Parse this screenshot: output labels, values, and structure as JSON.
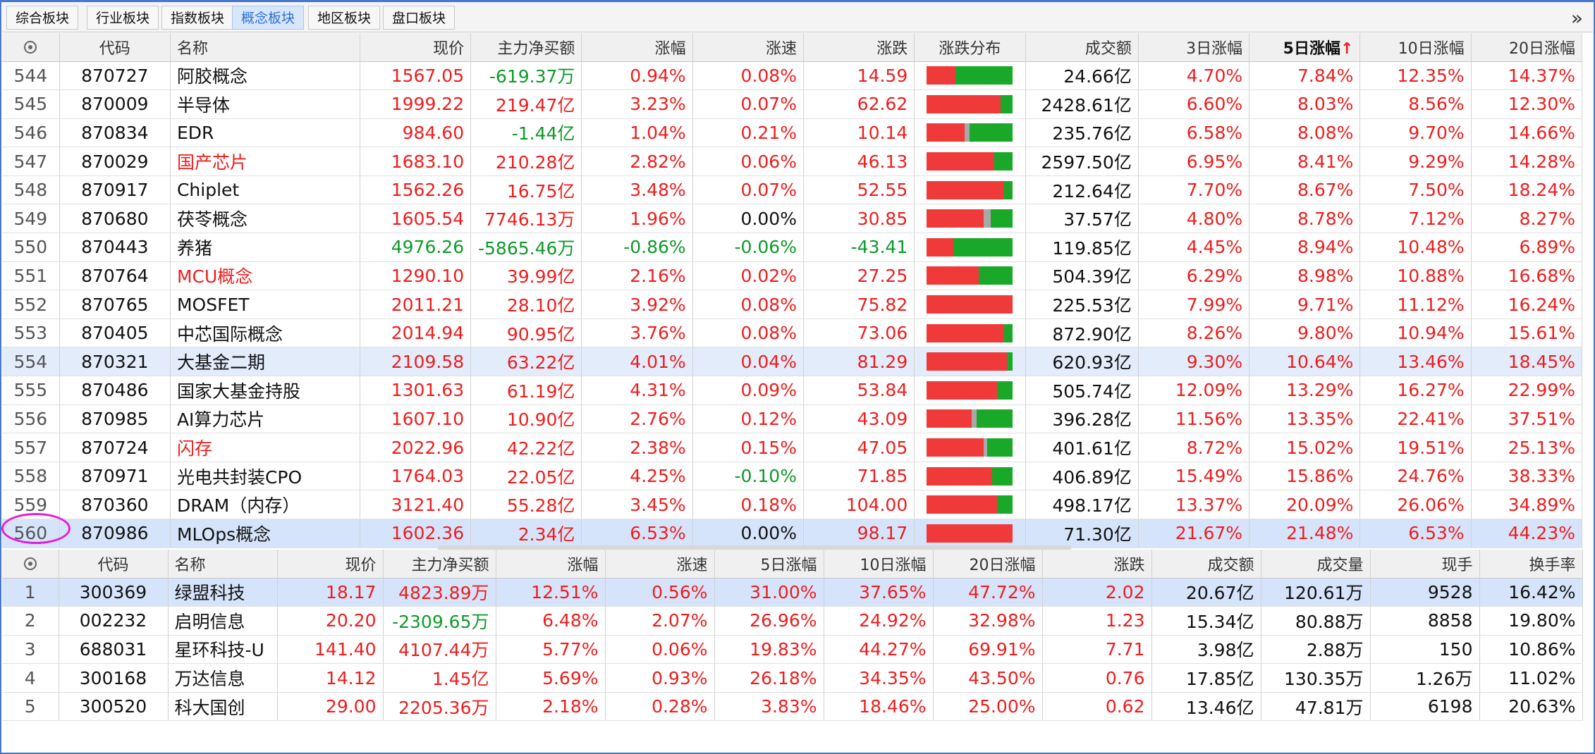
{
  "tabs": [
    "综合板块",
    "行业板块",
    "指数板块",
    "概念板块",
    "地区板块",
    "盘口板块"
  ],
  "active_tab": 3,
  "more_icon": "double-chevron-right-icon",
  "colors": {
    "up": "#ee1d1d",
    "down": "#0f9a2a",
    "flat": "#111111",
    "bar_red": "#f03a3a",
    "bar_green": "#1aa828",
    "bar_gray": "#a8a8a8",
    "highlight": "#e11fd6"
  },
  "top_table": {
    "headers": [
      "",
      "代码",
      "名称",
      "现价",
      "主力净买额",
      "涨幅",
      "涨速",
      "涨跌",
      "涨跌分布",
      "成交额",
      "3日涨幅",
      "5日涨幅",
      "10日涨幅",
      "20日涨幅"
    ],
    "sort_marker": "↑",
    "rows": [
      {
        "idx": "544",
        "code": "870727",
        "name": "阿胶概念",
        "price": "1567.05",
        "net": "-619.37万",
        "chg": "0.94%",
        "speed": "0.08%",
        "diff": "14.59",
        "dist": [
          0.33,
          0,
          0.67
        ],
        "amount": "24.66亿",
        "d3": "4.70%",
        "d5": "7.84%",
        "d10": "12.35%",
        "d20": "14.37%",
        "c": {
          "name": "blk",
          "price": "red",
          "net": "green",
          "chg": "red",
          "speed": "red",
          "diff": "red"
        }
      },
      {
        "idx": "545",
        "code": "870009",
        "name": "半导体",
        "price": "1999.22",
        "net": "219.47亿",
        "chg": "3.23%",
        "speed": "0.07%",
        "diff": "62.62",
        "dist": [
          0.86,
          0,
          0.14
        ],
        "amount": "2428.61亿",
        "d3": "6.60%",
        "d5": "8.03%",
        "d10": "8.56%",
        "d20": "12.30%",
        "c": {
          "name": "blk",
          "price": "red",
          "net": "red",
          "chg": "red",
          "speed": "red",
          "diff": "red"
        }
      },
      {
        "idx": "546",
        "code": "870834",
        "name": "EDR",
        "price": "984.60",
        "net": "-1.44亿",
        "chg": "1.04%",
        "speed": "0.21%",
        "diff": "10.14",
        "dist": [
          0.44,
          0.06,
          0.5
        ],
        "amount": "235.76亿",
        "d3": "6.58%",
        "d5": "8.08%",
        "d10": "9.70%",
        "d20": "14.66%",
        "c": {
          "name": "blk",
          "price": "red",
          "net": "green",
          "chg": "red",
          "speed": "red",
          "diff": "red"
        }
      },
      {
        "idx": "547",
        "code": "870029",
        "name": "国产芯片",
        "price": "1683.10",
        "net": "210.28亿",
        "chg": "2.82%",
        "speed": "0.06%",
        "diff": "46.13",
        "dist": [
          0.78,
          0,
          0.22
        ],
        "amount": "2597.50亿",
        "d3": "6.95%",
        "d5": "8.41%",
        "d10": "9.29%",
        "d20": "14.28%",
        "c": {
          "name": "red",
          "price": "red",
          "net": "red",
          "chg": "red",
          "speed": "red",
          "diff": "red"
        }
      },
      {
        "idx": "548",
        "code": "870917",
        "name": "Chiplet",
        "price": "1562.26",
        "net": "16.75亿",
        "chg": "3.48%",
        "speed": "0.07%",
        "diff": "52.55",
        "dist": [
          0.9,
          0,
          0.1
        ],
        "amount": "212.64亿",
        "d3": "7.70%",
        "d5": "8.67%",
        "d10": "7.50%",
        "d20": "18.24%",
        "c": {
          "name": "blk",
          "price": "red",
          "net": "red",
          "chg": "red",
          "speed": "red",
          "diff": "red"
        }
      },
      {
        "idx": "549",
        "code": "870680",
        "name": "茯苓概念",
        "price": "1605.54",
        "net": "7746.13万",
        "chg": "1.96%",
        "speed": "0.00%",
        "diff": "30.85",
        "dist": [
          0.66,
          0.08,
          0.26
        ],
        "amount": "37.57亿",
        "d3": "4.80%",
        "d5": "8.78%",
        "d10": "7.12%",
        "d20": "8.27%",
        "c": {
          "name": "blk",
          "price": "red",
          "net": "red",
          "chg": "red",
          "speed": "blk",
          "diff": "red"
        }
      },
      {
        "idx": "550",
        "code": "870443",
        "name": "养猪",
        "price": "4976.26",
        "net": "-5865.46万",
        "chg": "-0.86%",
        "speed": "-0.06%",
        "diff": "-43.41",
        "dist": [
          0.31,
          0,
          0.69
        ],
        "amount": "119.85亿",
        "d3": "4.45%",
        "d5": "8.94%",
        "d10": "10.48%",
        "d20": "6.89%",
        "c": {
          "name": "blk",
          "price": "green",
          "net": "green",
          "chg": "green",
          "speed": "green",
          "diff": "green"
        }
      },
      {
        "idx": "551",
        "code": "870764",
        "name": "MCU概念",
        "price": "1290.10",
        "net": "39.99亿",
        "chg": "2.16%",
        "speed": "0.02%",
        "diff": "27.25",
        "dist": [
          0.6,
          0,
          0.4
        ],
        "amount": "504.39亿",
        "d3": "6.29%",
        "d5": "8.98%",
        "d10": "10.88%",
        "d20": "16.68%",
        "c": {
          "name": "red",
          "price": "red",
          "net": "red",
          "chg": "red",
          "speed": "red",
          "diff": "red"
        }
      },
      {
        "idx": "552",
        "code": "870765",
        "name": "MOSFET",
        "price": "2011.21",
        "net": "28.10亿",
        "chg": "3.92%",
        "speed": "0.08%",
        "diff": "75.82",
        "dist": [
          1,
          0,
          0
        ],
        "amount": "225.53亿",
        "d3": "7.99%",
        "d5": "9.71%",
        "d10": "11.12%",
        "d20": "16.24%",
        "c": {
          "name": "blk",
          "price": "red",
          "net": "red",
          "chg": "red",
          "speed": "red",
          "diff": "red"
        }
      },
      {
        "idx": "553",
        "code": "870405",
        "name": "中芯国际概念",
        "price": "2014.94",
        "net": "90.95亿",
        "chg": "3.76%",
        "speed": "0.08%",
        "diff": "73.06",
        "dist": [
          0.9,
          0,
          0.1
        ],
        "amount": "872.90亿",
        "d3": "8.26%",
        "d5": "9.80%",
        "d10": "10.94%",
        "d20": "15.61%",
        "c": {
          "name": "blk",
          "price": "red",
          "net": "red",
          "chg": "red",
          "speed": "red",
          "diff": "red"
        }
      },
      {
        "idx": "554",
        "code": "870321",
        "name": "大基金二期",
        "price": "2109.58",
        "net": "63.22亿",
        "chg": "4.01%",
        "speed": "0.04%",
        "diff": "81.29",
        "dist": [
          0.93,
          0,
          0.07
        ],
        "amount": "620.93亿",
        "d3": "9.30%",
        "d5": "10.64%",
        "d10": "13.46%",
        "d20": "18.45%",
        "c": {
          "name": "blk",
          "price": "red",
          "net": "red",
          "chg": "red",
          "speed": "red",
          "diff": "red"
        },
        "selected": true
      },
      {
        "idx": "555",
        "code": "870486",
        "name": "国家大基金持股",
        "price": "1301.63",
        "net": "61.19亿",
        "chg": "4.31%",
        "speed": "0.09%",
        "diff": "53.84",
        "dist": [
          0.82,
          0,
          0.18
        ],
        "amount": "505.74亿",
        "d3": "12.09%",
        "d5": "13.29%",
        "d10": "16.27%",
        "d20": "22.99%",
        "c": {
          "name": "blk",
          "price": "red",
          "net": "red",
          "chg": "red",
          "speed": "red",
          "diff": "red"
        }
      },
      {
        "idx": "556",
        "code": "870985",
        "name": "AI算力芯片",
        "price": "1607.10",
        "net": "10.90亿",
        "chg": "2.76%",
        "speed": "0.12%",
        "diff": "43.09",
        "dist": [
          0.52,
          0.06,
          0.42
        ],
        "amount": "396.28亿",
        "d3": "11.56%",
        "d5": "13.35%",
        "d10": "22.41%",
        "d20": "37.51%",
        "c": {
          "name": "blk",
          "price": "red",
          "net": "red",
          "chg": "red",
          "speed": "red",
          "diff": "red"
        }
      },
      {
        "idx": "557",
        "code": "870724",
        "name": "闪存",
        "price": "2022.96",
        "net": "42.22亿",
        "chg": "2.38%",
        "speed": "0.15%",
        "diff": "47.05",
        "dist": [
          0.66,
          0.04,
          0.3
        ],
        "amount": "401.61亿",
        "d3": "8.72%",
        "d5": "15.02%",
        "d10": "19.51%",
        "d20": "25.13%",
        "c": {
          "name": "red",
          "price": "red",
          "net": "red",
          "chg": "red",
          "speed": "red",
          "diff": "red"
        }
      },
      {
        "idx": "558",
        "code": "870971",
        "name": "光电共封装CPO",
        "price": "1764.03",
        "net": "22.05亿",
        "chg": "4.25%",
        "speed": "-0.10%",
        "diff": "71.85",
        "dist": [
          0.76,
          0,
          0.24
        ],
        "amount": "406.89亿",
        "d3": "15.49%",
        "d5": "15.86%",
        "d10": "24.76%",
        "d20": "38.33%",
        "c": {
          "name": "blk",
          "price": "red",
          "net": "red",
          "chg": "red",
          "speed": "green",
          "diff": "red"
        }
      },
      {
        "idx": "559",
        "code": "870360",
        "name": "DRAM（内存）",
        "price": "3121.40",
        "net": "55.28亿",
        "chg": "3.45%",
        "speed": "0.18%",
        "diff": "104.00",
        "dist": [
          0.82,
          0,
          0.18
        ],
        "amount": "498.17亿",
        "d3": "13.37%",
        "d5": "20.09%",
        "d10": "26.06%",
        "d20": "34.89%",
        "c": {
          "name": "blk",
          "price": "red",
          "net": "red",
          "chg": "red",
          "speed": "red",
          "diff": "red"
        }
      },
      {
        "idx": "560",
        "code": "870986",
        "name": "MLOps概念",
        "price": "1602.36",
        "net": "2.34亿",
        "chg": "6.53%",
        "speed": "0.00%",
        "diff": "98.17",
        "dist": [
          1,
          0,
          0
        ],
        "amount": "71.30亿",
        "d3": "21.67%",
        "d5": "21.48%",
        "d10": "6.53%",
        "d20": "44.23%",
        "c": {
          "name": "blk",
          "price": "red",
          "net": "red",
          "chg": "red",
          "speed": "blk",
          "diff": "red"
        },
        "selected2": true
      }
    ]
  },
  "bottom_table": {
    "headers": [
      "",
      "代码",
      "名称",
      "现价",
      "主力净买额",
      "涨幅",
      "涨速",
      "5日涨幅",
      "10日涨幅",
      "20日涨幅",
      "涨跌",
      "成交额",
      "成交量",
      "现手",
      "换手率"
    ],
    "rows": [
      {
        "idx": "1",
        "code": "300369",
        "name": "绿盟科技",
        "price": "18.17",
        "net": "4823.89万",
        "chg": "12.51%",
        "speed": "0.56%",
        "d5": "31.00%",
        "d10": "37.65%",
        "d20": "47.72%",
        "diff": "2.02",
        "amount": "20.67亿",
        "vol": "120.61万",
        "hand": "9528",
        "turn": "16.42%",
        "netc": "red",
        "selected": true
      },
      {
        "idx": "2",
        "code": "002232",
        "name": "启明信息",
        "price": "20.20",
        "net": "-2309.65万",
        "chg": "6.48%",
        "speed": "2.07%",
        "d5": "26.96%",
        "d10": "24.92%",
        "d20": "32.98%",
        "diff": "1.23",
        "amount": "15.34亿",
        "vol": "80.88万",
        "hand": "8858",
        "turn": "19.80%",
        "netc": "green"
      },
      {
        "idx": "3",
        "code": "688031",
        "name": "星环科技-U",
        "price": "141.40",
        "net": "4107.44万",
        "chg": "5.77%",
        "speed": "0.06%",
        "d5": "19.83%",
        "d10": "44.27%",
        "d20": "69.91%",
        "diff": "7.71",
        "amount": "3.98亿",
        "vol": "2.88万",
        "hand": "150",
        "turn": "10.86%",
        "netc": "red"
      },
      {
        "idx": "4",
        "code": "300168",
        "name": "万达信息",
        "price": "14.12",
        "net": "1.45亿",
        "chg": "5.69%",
        "speed": "0.93%",
        "d5": "26.18%",
        "d10": "34.35%",
        "d20": "43.50%",
        "diff": "0.76",
        "amount": "17.85亿",
        "vol": "130.35万",
        "hand": "1.26万",
        "turn": "11.02%",
        "netc": "red"
      },
      {
        "idx": "5",
        "code": "300520",
        "name": "科大国创",
        "price": "29.00",
        "net": "2205.36万",
        "chg": "2.18%",
        "speed": "0.28%",
        "d5": "3.83%",
        "d10": "18.46%",
        "d20": "25.00%",
        "diff": "0.62",
        "amount": "13.46亿",
        "vol": "47.81万",
        "hand": "6198",
        "turn": "20.63%",
        "netc": "red"
      }
    ]
  }
}
